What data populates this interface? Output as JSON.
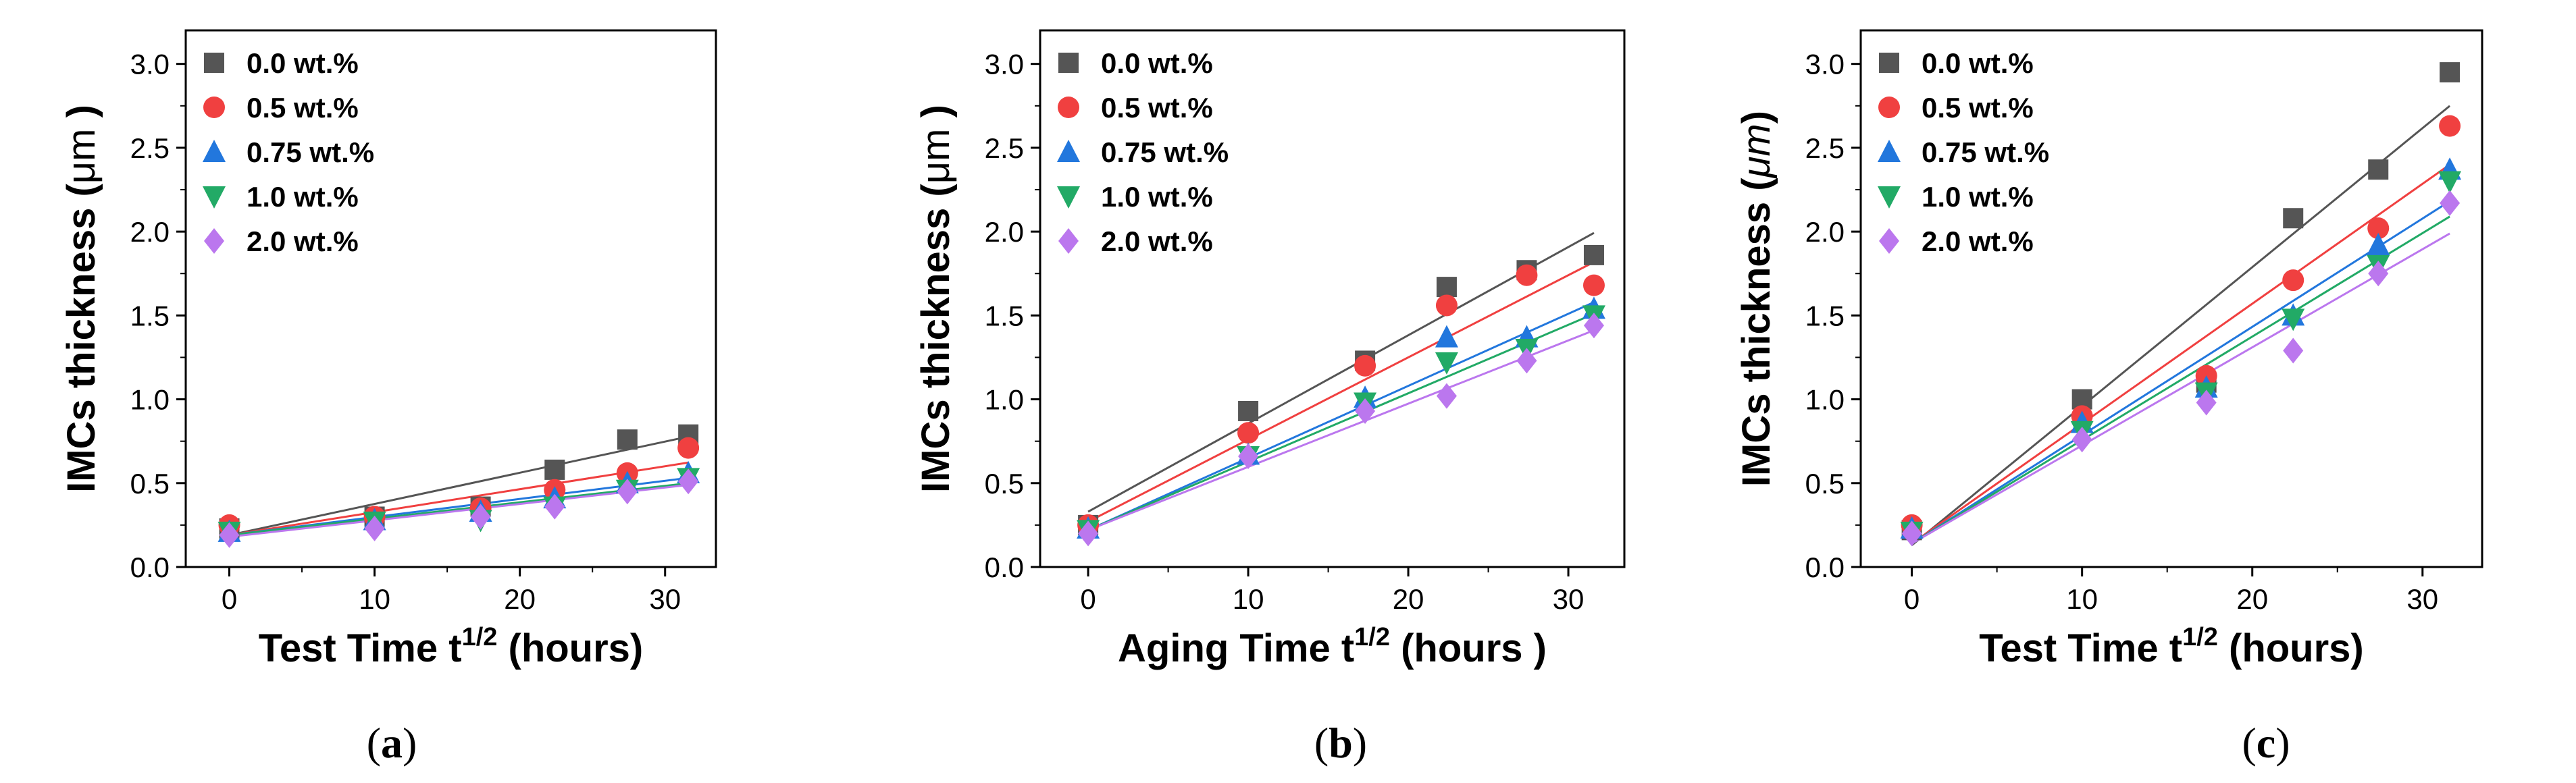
{
  "chart_data": [
    {
      "type": "scatter",
      "panel_label": "(a)",
      "xlabel": "Test Time  t",
      "xlabel_sup": "1/2",
      "xlabel_suffix": " (hours)",
      "ylabel": "IMCs thickness (",
      "ylabel_unit": "μm",
      "ylabel_suffix": " )",
      "xlim": [
        -3,
        33.5
      ],
      "ylim": [
        0,
        3.2
      ],
      "xticks": [
        0,
        10,
        20,
        30
      ],
      "yticks": [
        0.0,
        0.5,
        1.0,
        1.5,
        2.0,
        2.5,
        3.0
      ],
      "legend_position": "top-left",
      "fit_lines": true,
      "series": [
        {
          "name": "0.0 wt.%",
          "marker": "square",
          "color": "#555555",
          "x": [
            0,
            10,
            17.3,
            22.4,
            27.4,
            31.6
          ],
          "y": [
            0.23,
            0.3,
            0.36,
            0.58,
            0.76,
            0.79
          ],
          "fit": [
            0.19,
            0.0186
          ]
        },
        {
          "name": "0.5 wt.%",
          "marker": "circle",
          "color": "#f04040",
          "x": [
            0,
            10,
            17.3,
            22.4,
            27.4,
            31.6
          ],
          "y": [
            0.25,
            0.3,
            0.35,
            0.46,
            0.56,
            0.71
          ],
          "fit": [
            0.19,
            0.0137
          ]
        },
        {
          "name": "0.75 wt.%",
          "marker": "triangle-up",
          "color": "#2277dd",
          "x": [
            0,
            10,
            17.3,
            22.4,
            27.4,
            31.6
          ],
          "y": [
            0.21,
            0.28,
            0.33,
            0.41,
            0.5,
            0.56
          ],
          "fit": [
            0.19,
            0.0108
          ]
        },
        {
          "name": "1.0 wt.%",
          "marker": "triangle-down",
          "color": "#22aa66",
          "x": [
            0,
            10,
            17.3,
            22.4,
            27.4,
            31.6
          ],
          "y": [
            0.21,
            0.27,
            0.28,
            0.36,
            0.46,
            0.53
          ],
          "fit": [
            0.19,
            0.0098
          ]
        },
        {
          "name": "2.0 wt.%",
          "marker": "diamond",
          "color": "#bb77ee",
          "x": [
            0,
            10,
            17.3,
            22.4,
            27.4,
            31.6
          ],
          "y": [
            0.19,
            0.23,
            0.3,
            0.36,
            0.45,
            0.51
          ],
          "fit": [
            0.18,
            0.0098
          ]
        }
      ]
    },
    {
      "type": "scatter",
      "panel_label": "(b)",
      "xlabel": "Aging Time  t",
      "xlabel_sup": "1/2",
      "xlabel_suffix": " (hours )",
      "ylabel": "IMCs thickness (",
      "ylabel_unit": "μm",
      "ylabel_suffix": " )",
      "xlim": [
        -3,
        33.5
      ],
      "ylim": [
        0,
        3.2
      ],
      "xticks": [
        0,
        10,
        20,
        30
      ],
      "yticks": [
        0.0,
        0.5,
        1.0,
        1.5,
        2.0,
        2.5,
        3.0
      ],
      "legend_position": "top-left",
      "fit_lines": true,
      "series": [
        {
          "name": "0.0 wt.%",
          "marker": "square",
          "color": "#555555",
          "x": [
            0,
            10,
            17.3,
            22.4,
            27.4,
            31.6
          ],
          "y": [
            0.25,
            0.93,
            1.23,
            1.67,
            1.77,
            1.86
          ],
          "fit": [
            0.33,
            0.0526
          ]
        },
        {
          "name": "0.5 wt.%",
          "marker": "circle",
          "color": "#f04040",
          "x": [
            0,
            10,
            17.3,
            22.4,
            27.4,
            31.6
          ],
          "y": [
            0.25,
            0.8,
            1.2,
            1.56,
            1.74,
            1.68
          ],
          "fit": [
            0.27,
            0.049
          ]
        },
        {
          "name": "0.75 wt.%",
          "marker": "triangle-up",
          "color": "#2277dd",
          "x": [
            0,
            10,
            17.3,
            22.4,
            27.4,
            31.6
          ],
          "y": [
            0.23,
            0.67,
            1.01,
            1.37,
            1.37,
            1.54
          ],
          "fit": [
            0.22,
            0.043
          ]
        },
        {
          "name": "1.0 wt.%",
          "marker": "triangle-down",
          "color": "#22aa66",
          "x": [
            0,
            10,
            17.3,
            22.4,
            27.4,
            31.6
          ],
          "y": [
            0.22,
            0.66,
            0.98,
            1.22,
            1.3,
            1.5
          ],
          "fit": [
            0.22,
            0.0408
          ]
        },
        {
          "name": "2.0 wt.%",
          "marker": "diamond",
          "color": "#bb77ee",
          "x": [
            0,
            10,
            17.3,
            22.4,
            27.4,
            31.6
          ],
          "y": [
            0.2,
            0.66,
            0.93,
            1.02,
            1.23,
            1.44
          ],
          "fit": [
            0.22,
            0.0377
          ]
        }
      ]
    },
    {
      "type": "scatter",
      "panel_label": "(c)",
      "xlabel": "Test Time  t",
      "xlabel_sup": "1/2",
      "xlabel_suffix": " (hours)",
      "ylabel": "IMCs thickness (",
      "ylabel_unit": "μm",
      "ylabel_suffix": ")",
      "xlim": [
        -3,
        33.5
      ],
      "ylim": [
        0,
        3.2
      ],
      "xticks": [
        0,
        10,
        20,
        30
      ],
      "yticks": [
        0.0,
        0.5,
        1.0,
        1.5,
        2.0,
        2.5,
        3.0
      ],
      "legend_position": "top-left",
      "fit_lines": true,
      "series": [
        {
          "name": "0.0 wt.%",
          "marker": "square",
          "color": "#555555",
          "x": [
            0,
            10,
            17.3,
            22.4,
            27.4,
            31.6
          ],
          "y": [
            0.22,
            1.0,
            1.1,
            2.08,
            2.37,
            2.95
          ],
          "fit": [
            0.13,
            0.0829
          ]
        },
        {
          "name": "0.5 wt.%",
          "marker": "circle",
          "color": "#f04040",
          "x": [
            0,
            10,
            17.3,
            22.4,
            27.4,
            31.6
          ],
          "y": [
            0.25,
            0.9,
            1.14,
            1.71,
            2.02,
            2.63
          ],
          "fit": [
            0.14,
            0.0715
          ]
        },
        {
          "name": "0.75 wt.%",
          "marker": "triangle-up",
          "color": "#2277dd",
          "x": [
            0,
            10,
            17.3,
            22.4,
            27.4,
            31.6
          ],
          "y": [
            0.23,
            0.86,
            1.07,
            1.5,
            1.92,
            2.37
          ],
          "fit": [
            0.14,
            0.0646
          ]
        },
        {
          "name": "1.0 wt.%",
          "marker": "triangle-down",
          "color": "#22aa66",
          "x": [
            0,
            10,
            17.3,
            22.4,
            27.4,
            31.6
          ],
          "y": [
            0.21,
            0.81,
            1.04,
            1.48,
            1.8,
            2.3
          ],
          "fit": [
            0.14,
            0.0617
          ]
        },
        {
          "name": "2.0 wt.%",
          "marker": "diamond",
          "color": "#bb77ee",
          "x": [
            0,
            10,
            17.3,
            22.4,
            27.4,
            31.6
          ],
          "y": [
            0.2,
            0.76,
            0.98,
            1.29,
            1.75,
            2.17
          ],
          "fit": [
            0.14,
            0.0585
          ]
        }
      ]
    }
  ]
}
